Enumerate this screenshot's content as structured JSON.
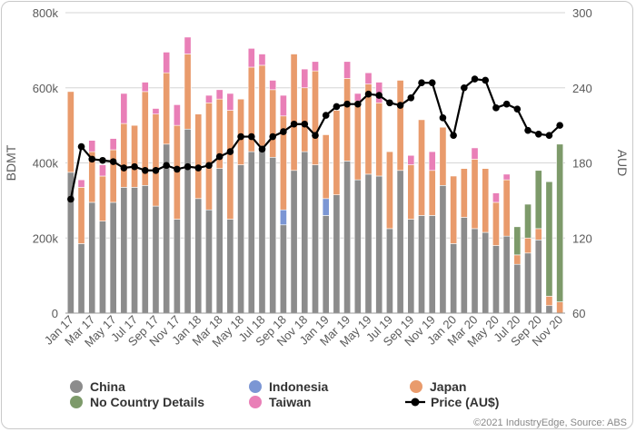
{
  "chart_data": {
    "type": "bar",
    "categories": [
      "Jan 17",
      "Feb 17",
      "Mar 17",
      "Apr 17",
      "May 17",
      "Jun 17",
      "Jul 17",
      "Aug 17",
      "Sep 17",
      "Oct 17",
      "Nov 17",
      "Dec 17",
      "Jan 18",
      "Feb 18",
      "Mar 18",
      "Apr 18",
      "May 18",
      "Jun 18",
      "Jul 18",
      "Aug 18",
      "Sep 18",
      "Oct 18",
      "Nov 18",
      "Dec 18",
      "Jan 19",
      "Feb 19",
      "Mar 19",
      "Apr 19",
      "May 19",
      "Jun 19",
      "Jul 19",
      "Aug 19",
      "Sep 19",
      "Oct 19",
      "Nov 19",
      "Dec 19",
      "Jan 20",
      "Feb 20",
      "Mar 20",
      "Apr 20",
      "May 20",
      "Jun 20",
      "Jul 20",
      "Aug 20",
      "Sep 20",
      "Oct 20",
      "Nov 20"
    ],
    "x_tick_labels": [
      "Jan 17",
      "Mar 17",
      "May 17",
      "Jul 17",
      "Sep 17",
      "Nov 17",
      "Jan 18",
      "Mar 18",
      "May 18",
      "Jul 18",
      "Sep 18",
      "Nov 18",
      "Jan 19",
      "Mar 19",
      "May 19",
      "Jul 19",
      "Sep 19",
      "Nov 19",
      "Jan 20",
      "Mar 20",
      "May 20",
      "Jul 20",
      "Sep 20",
      "Nov 20"
    ],
    "series": [
      {
        "name": "China",
        "color": "#8c8c8c",
        "values": [
          375000,
          185000,
          295000,
          245000,
          295000,
          335000,
          335000,
          340000,
          285000,
          450000,
          250000,
          490000,
          305000,
          275000,
          385000,
          250000,
          395000,
          430000,
          445000,
          415000,
          235000,
          380000,
          430000,
          395000,
          260000,
          315000,
          405000,
          355000,
          370000,
          365000,
          225000,
          380000,
          250000,
          260000,
          260000,
          340000,
          185000,
          255000,
          225000,
          215000,
          180000,
          205000,
          130000,
          160000,
          195000,
          20000,
          0
        ]
      },
      {
        "name": "Indonesia",
        "color": "#7b96d4",
        "values": [
          0,
          0,
          0,
          0,
          0,
          0,
          0,
          0,
          0,
          0,
          0,
          0,
          0,
          0,
          0,
          0,
          0,
          0,
          0,
          0,
          40000,
          0,
          0,
          0,
          45000,
          0,
          0,
          0,
          0,
          0,
          0,
          0,
          0,
          0,
          0,
          0,
          0,
          0,
          0,
          0,
          0,
          0,
          0,
          0,
          0,
          0,
          0
        ]
      },
      {
        "name": "Japan",
        "color": "#e99b6c",
        "values": [
          215000,
          150000,
          135000,
          120000,
          140000,
          170000,
          165000,
          250000,
          245000,
          190000,
          250000,
          200000,
          225000,
          285000,
          185000,
          290000,
          175000,
          225000,
          215000,
          180000,
          250000,
          310000,
          170000,
          250000,
          170000,
          225000,
          220000,
          210000,
          240000,
          195000,
          205000,
          240000,
          145000,
          255000,
          120000,
          155000,
          180000,
          130000,
          185000,
          170000,
          115000,
          150000,
          25000,
          40000,
          30000,
          25000,
          30000
        ]
      },
      {
        "name": "Taiwan",
        "color": "#e97fb7",
        "values": [
          0,
          20000,
          30000,
          30000,
          30000,
          80000,
          0,
          25000,
          15000,
          55000,
          55000,
          45000,
          0,
          20000,
          25000,
          45000,
          0,
          50000,
          30000,
          25000,
          55000,
          0,
          50000,
          25000,
          0,
          0,
          45000,
          20000,
          30000,
          55000,
          0,
          0,
          25000,
          0,
          50000,
          0,
          0,
          0,
          30000,
          0,
          25000,
          15000,
          0,
          0,
          0,
          0,
          0
        ]
      },
      {
        "name": "No Country Details",
        "color": "#7d9a6a",
        "values": [
          0,
          0,
          0,
          0,
          0,
          0,
          0,
          0,
          0,
          0,
          0,
          0,
          0,
          0,
          0,
          0,
          0,
          0,
          0,
          0,
          0,
          0,
          0,
          0,
          0,
          0,
          0,
          0,
          0,
          0,
          0,
          0,
          0,
          0,
          0,
          0,
          0,
          0,
          0,
          0,
          0,
          0,
          75000,
          90000,
          155000,
          305000,
          420000
        ]
      }
    ],
    "line": {
      "name": "Price (AU$)",
      "color": "#000000",
      "values": [
        151,
        193,
        183,
        182,
        181,
        176,
        177,
        174,
        174,
        178,
        175,
        177,
        176,
        178,
        185,
        189,
        201,
        201,
        191,
        201,
        205,
        211,
        211,
        202,
        218,
        225,
        227,
        227,
        235,
        234,
        228,
        226,
        232,
        244,
        244,
        216,
        202,
        240,
        247,
        246,
        224,
        227,
        223,
        206,
        203,
        202,
        210
      ]
    },
    "ylabel": "BDMT",
    "ylabel_right": "AUD",
    "ylim": [
      0,
      800000
    ],
    "ylim_right": [
      60,
      300
    ],
    "y_ticks": [
      "0",
      "200k",
      "400k",
      "600k",
      "800k"
    ],
    "y_ticks_right": [
      "60",
      "120",
      "180",
      "240",
      "300"
    ],
    "grid": "horizontal",
    "legend_position": "bottom"
  },
  "legend": [
    {
      "label": "China",
      "color": "#8c8c8c",
      "kind": "dot"
    },
    {
      "label": "Indonesia",
      "color": "#7b96d4",
      "kind": "dot"
    },
    {
      "label": "Japan",
      "color": "#e99b6c",
      "kind": "dot"
    },
    {
      "label": "No Country Details",
      "color": "#7d9a6a",
      "kind": "dot"
    },
    {
      "label": "Taiwan",
      "color": "#e97fb7",
      "kind": "dot"
    },
    {
      "label": "Price (AU$)",
      "color": "#000000",
      "kind": "line"
    }
  ],
  "footer": "©2021 IndustryEdge, Source: ABS"
}
